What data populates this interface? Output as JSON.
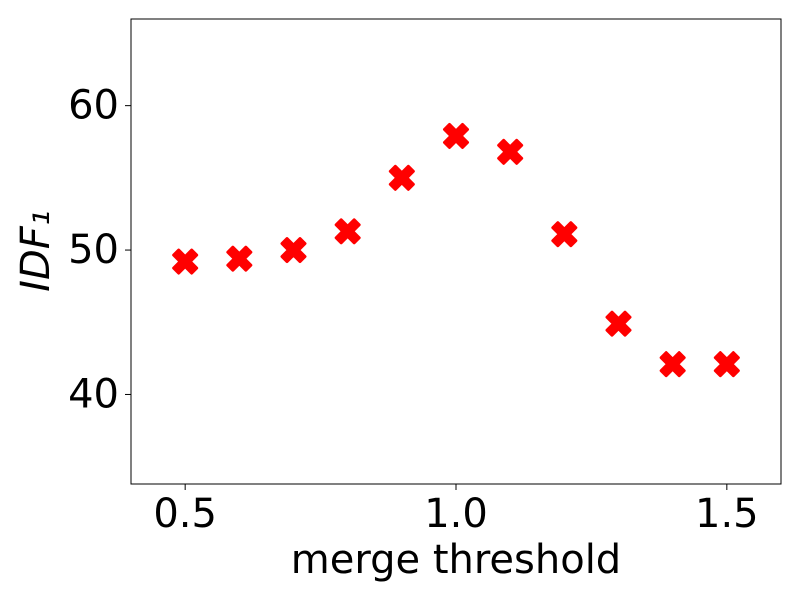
{
  "chart_data": {
    "type": "scatter",
    "x": [
      0.5,
      0.6,
      0.7,
      0.8,
      0.9,
      1.0,
      1.1,
      1.2,
      1.3,
      1.4,
      1.5
    ],
    "values": [
      49.2,
      49.4,
      50.0,
      51.3,
      55.0,
      57.9,
      56.8,
      51.1,
      44.9,
      42.1,
      42.1
    ],
    "color": "#ff0000",
    "xlabel": "merge threshold",
    "ylabel": "IDF₁",
    "xlim": [
      0.4,
      1.6
    ],
    "ylim": [
      33.8,
      66
    ],
    "xticks": [
      0.5,
      {
        "value": 1,
        "label": "1.0"
      },
      1.5
    ],
    "yticks": [
      40,
      50,
      60
    ],
    "grid": false
  }
}
